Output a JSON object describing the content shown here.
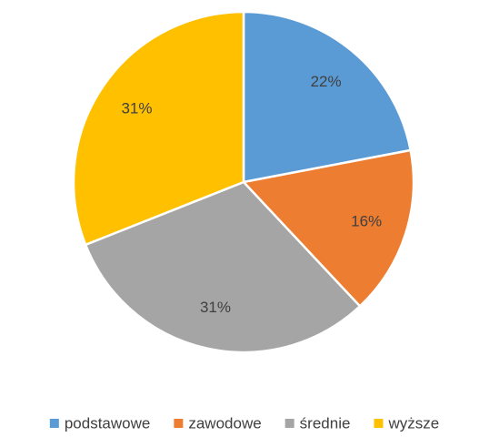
{
  "chart_data": {
    "type": "pie",
    "categories": [
      "podstawowe",
      "zawodowe",
      "średnie",
      "wyższe"
    ],
    "values": [
      22,
      16,
      31,
      31
    ],
    "value_labels": [
      "22%",
      "16%",
      "31%",
      "31%"
    ],
    "colors": [
      "#5b9bd5",
      "#ed7d31",
      "#a5a5a5",
      "#ffc000"
    ],
    "legend": "bottom"
  }
}
